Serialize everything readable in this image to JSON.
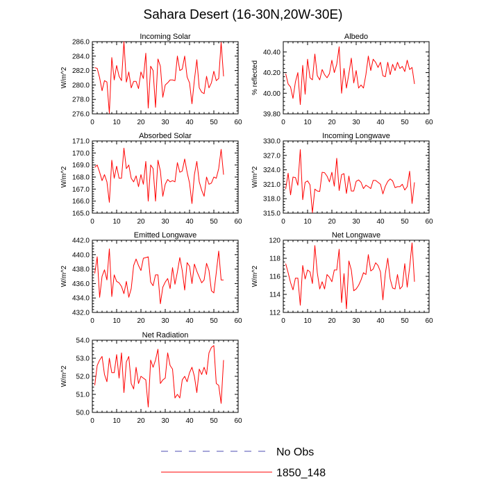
{
  "title": "Sahara Desert (16-30N,20W-30E)",
  "colors": {
    "obs": "#4d4db3",
    "model": "#ff0000",
    "axis": "#000000"
  },
  "legend": [
    {
      "label": "No Obs",
      "style": "dashed",
      "color": "#4d4db3"
    },
    {
      "label": "1850_148",
      "style": "solid",
      "color": "#ff0000"
    }
  ],
  "chart_data": [
    {
      "type": "line",
      "title": "Incoming Solar",
      "ylabel": "W/m^2",
      "xlim": [
        0,
        60
      ],
      "ylim": [
        276.0,
        286.0
      ],
      "xticks": [
        "0",
        "10",
        "20",
        "30",
        "40",
        "50",
        "60"
      ],
      "yticks": [
        "276.0",
        "278.0",
        "280.0",
        "282.0",
        "284.0",
        "286.0"
      ],
      "series": [
        {
          "name": "1850_148",
          "x": [
            1,
            2,
            3,
            4,
            5,
            6,
            7,
            8,
            9,
            10,
            11,
            12,
            13,
            14,
            15,
            16,
            17,
            18,
            19,
            20,
            21,
            22,
            23,
            24,
            25,
            26,
            27,
            28,
            29,
            30,
            31,
            32,
            33,
            34,
            35,
            36,
            37,
            38,
            39,
            40,
            41,
            42,
            43,
            44,
            45,
            46,
            47,
            48,
            49,
            50,
            51,
            52,
            53,
            54
          ],
          "values": [
            282.4,
            282.3,
            281.0,
            279.2,
            280.6,
            280.4,
            276.1,
            283.8,
            280.7,
            282.7,
            281.2,
            280.6,
            286.0,
            280.4,
            281.8,
            279.6,
            280.5,
            280.5,
            279.5,
            281.8,
            280.9,
            284.4,
            276.8,
            282.6,
            282.0,
            276.9,
            283.6,
            282.6,
            278.3,
            280.0,
            280.3,
            280.7,
            280.7,
            280.6,
            284.0,
            282.0,
            282.2,
            284.0,
            281.1,
            280.3,
            277.4,
            280.7,
            283.5,
            279.6,
            279.0,
            278.8,
            281.2,
            279.6,
            280.3,
            281.9,
            280.6,
            280.9,
            285.9,
            281.2
          ]
        }
      ]
    },
    {
      "type": "line",
      "title": "Albedo",
      "ylabel": "% reflected",
      "xlim": [
        0,
        60
      ],
      "ylim": [
        39.8,
        40.5
      ],
      "xticks": [
        "0",
        "10",
        "20",
        "30",
        "40",
        "50",
        "60"
      ],
      "yticks": [
        "39.80",
        "40.00",
        "40.20",
        "40.40"
      ],
      "series": [
        {
          "name": "1850_148",
          "x": [
            1,
            2,
            3,
            4,
            5,
            6,
            7,
            8,
            9,
            10,
            11,
            12,
            13,
            14,
            15,
            16,
            17,
            18,
            19,
            20,
            21,
            22,
            23,
            24,
            25,
            26,
            27,
            28,
            29,
            30,
            31,
            32,
            33,
            34,
            35,
            36,
            37,
            38,
            39,
            40,
            41,
            42,
            43,
            44,
            45,
            46,
            47,
            48,
            49,
            50,
            51,
            52,
            53,
            54
          ],
          "values": [
            40.19,
            40.09,
            40.06,
            39.95,
            40.11,
            40.2,
            39.89,
            40.27,
            39.99,
            40.33,
            40.15,
            40.13,
            40.38,
            40.17,
            40.13,
            40.23,
            40.18,
            40.15,
            40.19,
            40.32,
            40.2,
            40.28,
            40.45,
            40.0,
            40.24,
            40.05,
            40.19,
            40.34,
            40.1,
            40.22,
            40.05,
            40.08,
            40.05,
            40.18,
            40.36,
            40.22,
            40.33,
            40.3,
            40.25,
            40.3,
            40.17,
            40.16,
            40.3,
            40.18,
            40.28,
            40.22,
            40.3,
            40.24,
            40.26,
            40.21,
            40.32,
            40.23,
            40.25,
            40.09
          ]
        }
      ]
    },
    {
      "type": "line",
      "title": "Absorbed Solar",
      "ylabel": "W/m^2",
      "xlim": [
        0,
        60
      ],
      "ylim": [
        165.0,
        171.0
      ],
      "xticks": [
        "0",
        "10",
        "20",
        "30",
        "40",
        "50",
        "60"
      ],
      "yticks": [
        "165.0",
        "166.0",
        "167.0",
        "168.0",
        "169.0",
        "170.0",
        "171.0"
      ],
      "series": [
        {
          "name": "1850_148",
          "x": [
            1,
            2,
            3,
            4,
            5,
            6,
            7,
            8,
            9,
            10,
            11,
            12,
            13,
            14,
            15,
            16,
            17,
            18,
            19,
            20,
            21,
            22,
            23,
            24,
            25,
            26,
            27,
            28,
            29,
            30,
            31,
            32,
            33,
            34,
            35,
            36,
            37,
            38,
            39,
            40,
            41,
            42,
            43,
            44,
            45,
            46,
            47,
            48,
            49,
            50,
            51,
            52,
            53,
            54
          ],
          "values": [
            168.8,
            169.0,
            168.4,
            167.7,
            168.2,
            167.6,
            165.9,
            169.4,
            167.9,
            168.9,
            167.9,
            167.9,
            170.4,
            168.7,
            169.0,
            167.9,
            167.6,
            168.1,
            167.2,
            168.2,
            167.4,
            169.3,
            166.0,
            169.0,
            168.7,
            166.0,
            169.4,
            168.5,
            166.4,
            167.4,
            167.8,
            167.6,
            167.7,
            167.6,
            169.2,
            168.4,
            168.5,
            169.5,
            168.4,
            167.5,
            165.8,
            168.2,
            169.3,
            167.6,
            166.9,
            166.4,
            168.0,
            167.4,
            167.5,
            168.0,
            167.9,
            168.7,
            170.3,
            168.2
          ]
        }
      ]
    },
    {
      "type": "line",
      "title": "Incoming Longwave",
      "ylabel": "W/m^2",
      "xlim": [
        0,
        60
      ],
      "ylim": [
        315.0,
        330.0
      ],
      "xticks": [
        "0",
        "10",
        "20",
        "30",
        "40",
        "50",
        "60"
      ],
      "yticks": [
        "315.0",
        "318.0",
        "321.0",
        "324.0",
        "327.0",
        "330.0"
      ],
      "series": [
        {
          "name": "1850_148",
          "x": [
            1,
            2,
            3,
            4,
            5,
            6,
            7,
            8,
            9,
            10,
            11,
            12,
            13,
            14,
            15,
            16,
            17,
            18,
            19,
            20,
            21,
            22,
            23,
            24,
            25,
            26,
            27,
            28,
            29,
            30,
            31,
            32,
            33,
            34,
            35,
            36,
            37,
            38,
            39,
            40,
            41,
            42,
            43,
            44,
            45,
            46,
            47,
            48,
            49,
            50,
            51,
            52,
            53,
            54
          ],
          "values": [
            320.0,
            323.3,
            318.8,
            322.5,
            322.4,
            320.8,
            328.2,
            317.8,
            321.4,
            321.7,
            320.9,
            315.1,
            320.0,
            319.6,
            319.5,
            323.5,
            323.4,
            322.7,
            321.5,
            323.5,
            320.6,
            326.4,
            319.7,
            323.0,
            323.2,
            319.1,
            322.7,
            319.6,
            319.6,
            321.6,
            321.9,
            321.4,
            320.1,
            320.8,
            320.5,
            320.1,
            321.8,
            321.8,
            321.4,
            321.0,
            319.0,
            320.6,
            321.6,
            322.1,
            321.7,
            320.3,
            320.5,
            320.5,
            321.0,
            319.8,
            320.5,
            323.7,
            317.0,
            321.4
          ]
        }
      ]
    },
    {
      "type": "line",
      "title": "Emitted Longwave",
      "ylabel": "W/m^2",
      "xlim": [
        0,
        60
      ],
      "ylim": [
        432.0,
        442.0
      ],
      "xticks": [
        "0",
        "10",
        "20",
        "30",
        "40",
        "50",
        "60"
      ],
      "yticks": [
        "432.0",
        "434.0",
        "436.0",
        "438.0",
        "440.0",
        "442.0"
      ],
      "series": [
        {
          "name": "1850_148",
          "x": [
            1,
            2,
            3,
            4,
            5,
            6,
            7,
            8,
            9,
            10,
            11,
            12,
            13,
            14,
            15,
            16,
            17,
            18,
            19,
            20,
            21,
            22,
            23,
            24,
            25,
            26,
            27,
            28,
            29,
            30,
            31,
            32,
            33,
            34,
            35,
            36,
            37,
            38,
            39,
            40,
            41,
            42,
            43,
            44,
            45,
            46,
            47,
            48,
            49,
            50,
            51,
            52,
            53,
            54
          ],
          "values": [
            437.4,
            439.7,
            434.1,
            437.0,
            437.9,
            436.5,
            440.8,
            434.2,
            437.2,
            436.3,
            436.1,
            435.6,
            434.6,
            436.3,
            434.1,
            435.3,
            438.5,
            439.4,
            438.5,
            437.8,
            439.5,
            439.6,
            439.7,
            436.2,
            435.7,
            437.2,
            437.2,
            433.2,
            435.5,
            436.2,
            436.7,
            435.3,
            438.2,
            435.9,
            437.6,
            439.6,
            437.8,
            435.1,
            438.9,
            438.4,
            436.0,
            438.7,
            437.7,
            436.9,
            436.1,
            436.5,
            438.8,
            437.8,
            435.0,
            434.7,
            437.5,
            440.5,
            436.5,
            436.5
          ]
        }
      ]
    },
    {
      "type": "line",
      "title": "Net Longwave",
      "ylabel": "W/m^2",
      "xlim": [
        0,
        60
      ],
      "ylim": [
        112,
        120
      ],
      "xticks": [
        "0",
        "10",
        "20",
        "30",
        "40",
        "50",
        "60"
      ],
      "yticks": [
        "112",
        "114",
        "116",
        "118",
        "120"
      ],
      "series": [
        {
          "name": "1850_148",
          "x": [
            1,
            2,
            3,
            4,
            5,
            6,
            7,
            8,
            9,
            10,
            11,
            12,
            13,
            14,
            15,
            16,
            17,
            18,
            19,
            20,
            21,
            22,
            23,
            24,
            25,
            26,
            27,
            28,
            29,
            30,
            31,
            32,
            33,
            34,
            35,
            36,
            37,
            38,
            39,
            40,
            41,
            42,
            43,
            44,
            45,
            46,
            47,
            48,
            49,
            50,
            51,
            52,
            53,
            54
          ],
          "values": [
            117.4,
            116.4,
            115.3,
            114.5,
            115.8,
            115.8,
            112.8,
            117.2,
            115.7,
            116.7,
            116.5,
            115.2,
            119.4,
            116.4,
            114.6,
            115.4,
            114.6,
            116.2,
            115.9,
            115.4,
            116.7,
            116.7,
            119.0,
            113.1,
            116.3,
            112.4,
            117.7,
            116.7,
            114.4,
            114.6,
            115.0,
            115.6,
            116.4,
            116.2,
            118.4,
            116.6,
            116.8,
            117.5,
            117.2,
            116.5,
            113.4,
            116.3,
            118.0,
            115.7,
            114.7,
            114.6,
            116.2,
            114.6,
            114.9,
            117.4,
            114.8,
            117.0,
            119.7,
            115.4
          ]
        }
      ]
    },
    {
      "type": "line",
      "title": "Net Radiation",
      "ylabel": "W/m^2",
      "xlim": [
        0,
        60
      ],
      "ylim": [
        50.0,
        54.0
      ],
      "xticks": [
        "0",
        "10",
        "20",
        "30",
        "40",
        "50",
        "60"
      ],
      "yticks": [
        "50.0",
        "51.0",
        "52.0",
        "53.0",
        "54.0"
      ],
      "series": [
        {
          "name": "1850_148",
          "x": [
            1,
            2,
            3,
            4,
            5,
            6,
            7,
            8,
            9,
            10,
            11,
            12,
            13,
            14,
            15,
            16,
            17,
            18,
            19,
            20,
            21,
            22,
            23,
            24,
            25,
            26,
            27,
            28,
            29,
            30,
            31,
            32,
            33,
            34,
            35,
            36,
            37,
            38,
            39,
            40,
            41,
            42,
            43,
            44,
            45,
            46,
            47,
            48,
            49,
            50,
            51,
            52,
            53,
            54
          ],
          "values": [
            51.5,
            52.6,
            52.9,
            53.1,
            52.1,
            51.7,
            53.0,
            52.2,
            52.2,
            53.2,
            51.9,
            53.3,
            51.1,
            52.8,
            53.1,
            51.6,
            51.3,
            52.5,
            51.6,
            52.0,
            51.9,
            51.8,
            50.3,
            52.9,
            52.5,
            52.9,
            53.5,
            51.6,
            51.8,
            51.9,
            53.3,
            52.6,
            52.4,
            50.8,
            51.0,
            50.8,
            51.8,
            52.0,
            51.7,
            52.2,
            52.5,
            52.0,
            51.1,
            52.4,
            52.1,
            52.5,
            52.1,
            53.3,
            53.6,
            53.7,
            51.6,
            51.5,
            50.5,
            52.9
          ]
        }
      ]
    }
  ]
}
